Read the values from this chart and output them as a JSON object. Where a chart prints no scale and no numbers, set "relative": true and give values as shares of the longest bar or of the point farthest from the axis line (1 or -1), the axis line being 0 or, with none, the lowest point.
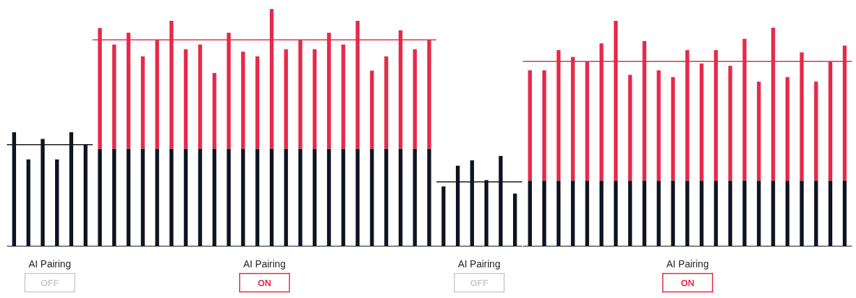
{
  "chart_data": [
    {
      "type": "bar",
      "relative": true,
      "xlabel": "AI Pairing",
      "annotations": [
        "OFF"
      ],
      "tick_labels": false,
      "categories": [
        null,
        null,
        null,
        null,
        null,
        null
      ],
      "series": [
        {
          "color": "#0f1420",
          "values": [
            1,
            0.76,
            0.94,
            0.76,
            1,
            0.89
          ]
        }
      ],
      "ref_lines": [
        {
          "axis": "y",
          "value": 0.89,
          "color": "#0f1420"
        }
      ]
    },
    {
      "type": "bar",
      "relative": true,
      "stacked": true,
      "xlabel": "AI Pairing",
      "annotations": [
        "ON"
      ],
      "tick_labels": false,
      "categories": [
        null,
        null,
        null,
        null,
        null,
        null,
        null,
        null,
        null,
        null,
        null,
        null,
        null,
        null,
        null,
        null,
        null,
        null,
        null,
        null,
        null,
        null,
        null,
        null
      ],
      "series": [
        {
          "color": "#0f1420",
          "values": [
            0.41,
            0.41,
            0.41,
            0.41,
            0.41,
            0.41,
            0.41,
            0.41,
            0.41,
            0.41,
            0.41,
            0.41,
            0.41,
            0.41,
            0.41,
            0.41,
            0.41,
            0.41,
            0.41,
            0.41,
            0.41,
            0.41,
            0.41,
            0.41
          ]
        },
        {
          "color": "#e8294a",
          "values": [
            0.51,
            0.44,
            0.49,
            0.39,
            0.46,
            0.54,
            0.42,
            0.44,
            0.32,
            0.49,
            0.41,
            0.39,
            0.59,
            0.42,
            0.46,
            0.42,
            0.49,
            0.44,
            0.54,
            0.33,
            0.39,
            0.5,
            0.42,
            0.46
          ]
        }
      ],
      "ref_lines": [
        {
          "axis": "y",
          "value": 0.87,
          "color": "#e8294a"
        }
      ]
    },
    {
      "type": "bar",
      "relative": true,
      "xlabel": "AI Pairing",
      "annotations": [
        "OFF"
      ],
      "tick_labels": false,
      "categories": [
        null,
        null,
        null,
        null,
        null,
        null
      ],
      "series": [
        {
          "color": "#0f1420",
          "values": [
            0.66,
            0.89,
            0.95,
            0.73,
            1,
            0.58
          ]
        }
      ],
      "ref_lines": [
        {
          "axis": "y",
          "value": 0.71,
          "color": "#0f1420"
        }
      ]
    },
    {
      "type": "bar",
      "relative": true,
      "stacked": true,
      "xlabel": "AI Pairing",
      "annotations": [
        "ON"
      ],
      "tick_labels": false,
      "categories": [
        null,
        null,
        null,
        null,
        null,
        null,
        null,
        null,
        null,
        null,
        null,
        null,
        null,
        null,
        null,
        null,
        null,
        null,
        null,
        null,
        null,
        null,
        null
      ],
      "series": [
        {
          "color": "#0f1420",
          "values": [
            0.29,
            0.29,
            0.29,
            0.29,
            0.29,
            0.29,
            0.29,
            0.29,
            0.29,
            0.29,
            0.29,
            0.29,
            0.29,
            0.29,
            0.29,
            0.29,
            0.29,
            0.29,
            0.29,
            0.29,
            0.29,
            0.29,
            0.29
          ]
        },
        {
          "color": "#e8294a",
          "values": [
            0.49,
            0.49,
            0.58,
            0.55,
            0.53,
            0.61,
            0.71,
            0.47,
            0.62,
            0.49,
            0.46,
            0.58,
            0.52,
            0.58,
            0.51,
            0.63,
            0.44,
            0.68,
            0.46,
            0.57,
            0.44,
            0.53,
            0.6
          ]
        }
      ],
      "ref_lines": [
        {
          "axis": "y",
          "value": 0.82,
          "color": "#e8294a"
        }
      ]
    }
  ]
}
